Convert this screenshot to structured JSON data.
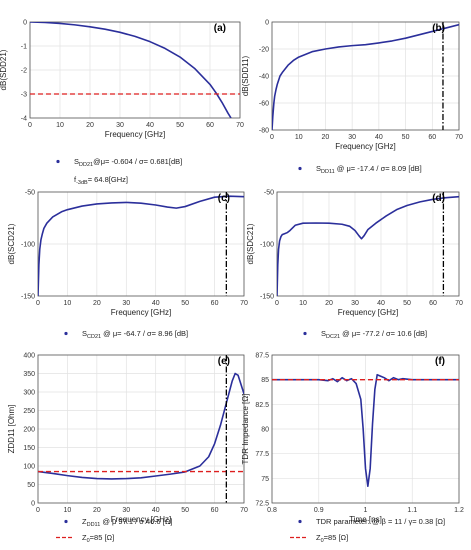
{
  "colors": {
    "curve": "#2b2f9b",
    "marker_red": "#dd1f1f",
    "marker_black": "#000000",
    "grid": "#e2e2e2"
  },
  "chart_data": [
    {
      "id": "a",
      "panel": "(a)",
      "type": "line",
      "xlabel": "Frequency [GHz]",
      "ylabel": "dB(SDD21)",
      "xlim": [
        0,
        70
      ],
      "ylim": [
        -4,
        0
      ],
      "xticks": [
        0,
        10,
        20,
        30,
        40,
        50,
        60,
        70
      ],
      "yticks": [
        0,
        -1,
        -2,
        -3,
        -4
      ],
      "series": [
        {
          "x": [
            0,
            5,
            10,
            15,
            20,
            25,
            30,
            35,
            40,
            45,
            50,
            55,
            60,
            62,
            64,
            66,
            67
          ],
          "y": [
            0,
            -0.02,
            -0.06,
            -0.12,
            -0.2,
            -0.3,
            -0.43,
            -0.6,
            -0.82,
            -1.1,
            -1.46,
            -1.95,
            -2.6,
            -2.95,
            -3.35,
            -3.8,
            -4.0
          ]
        }
      ],
      "hline": {
        "y": -3,
        "style": "red-dash"
      },
      "legend": [
        {
          "marker": "dot",
          "text": "S",
          "sub": "DD21",
          "rest": "@μ= -0.604 / σ= 0.681[dB]"
        },
        {
          "marker": "none",
          "text": "f",
          "sub": "-3dB",
          "rest": "= 64.8[GHz]"
        }
      ]
    },
    {
      "id": "b",
      "panel": "(b)",
      "type": "line",
      "xlabel": "Frequency [GHz]",
      "ylabel": "dB(SDD11)",
      "xlim": [
        0,
        70
      ],
      "ylim": [
        -80,
        0
      ],
      "xticks": [
        0,
        10,
        20,
        30,
        40,
        50,
        60,
        70
      ],
      "yticks": [
        0,
        -20,
        -40,
        -60,
        -80
      ],
      "series": [
        {
          "x": [
            0,
            0.3,
            0.7,
            1,
            1.5,
            2,
            3,
            4,
            6,
            8,
            10,
            15,
            20,
            25,
            30,
            35,
            40,
            45,
            50,
            55,
            60,
            65,
            70
          ],
          "y": [
            -80,
            -70,
            -60,
            -55,
            -50,
            -46,
            -40,
            -37,
            -32,
            -28.5,
            -26,
            -22,
            -20,
            -18.5,
            -17.5,
            -16.8,
            -15.5,
            -14,
            -12,
            -9.5,
            -7,
            -4.5,
            -2
          ]
        }
      ],
      "vline": {
        "x": 64,
        "style": "black-dashdot"
      },
      "legend": [
        {
          "marker": "dot",
          "text": "S",
          "sub": "DD11",
          "rest": " @ μ= -17.4 / σ= 8.09 [dB]"
        }
      ]
    },
    {
      "id": "c",
      "panel": "(c)",
      "type": "line",
      "xlabel": "Frequency [GHz]",
      "ylabel": "dB(SCD21)",
      "xlim": [
        0,
        70
      ],
      "ylim": [
        -150,
        -50
      ],
      "xticks": [
        0,
        10,
        20,
        30,
        40,
        50,
        60,
        70
      ],
      "yticks": [
        -50,
        -100,
        -150
      ],
      "series": [
        {
          "x": [
            0,
            0.3,
            0.6,
            1,
            1.5,
            2,
            3,
            5,
            8,
            10,
            15,
            20,
            25,
            30,
            35,
            40,
            44,
            47,
            50,
            55,
            60,
            65,
            70
          ],
          "y": [
            -150,
            -120,
            -105,
            -96,
            -90,
            -85,
            -80,
            -74,
            -69,
            -67,
            -63.5,
            -61.5,
            -60.5,
            -60,
            -60.8,
            -62.5,
            -64.5,
            -65.5,
            -64,
            -59,
            -55,
            -54,
            -54.5
          ]
        }
      ],
      "vline": {
        "x": 64,
        "style": "black-dashdot"
      },
      "legend": [
        {
          "marker": "dot",
          "text": "S",
          "sub": "CD21",
          "rest": " @ μ= -64.7 / σ= 8.96 [dB]"
        }
      ]
    },
    {
      "id": "d",
      "panel": "(d)",
      "type": "line",
      "xlabel": "Frequency [GHz]",
      "ylabel": "dB(SDC21)",
      "xlim": [
        0,
        70
      ],
      "ylim": [
        -150,
        -50
      ],
      "xticks": [
        0,
        10,
        20,
        30,
        40,
        50,
        60,
        70
      ],
      "yticks": [
        -50,
        -100,
        -150
      ],
      "series": [
        {
          "x": [
            0,
            0.3,
            0.6,
            1,
            1.5,
            2,
            3,
            4,
            5,
            7,
            10,
            15,
            20,
            25,
            28,
            30,
            31.5,
            32.5,
            33.5,
            35,
            38,
            42,
            46,
            50,
            55,
            60,
            65,
            70
          ],
          "y": [
            -150,
            -120,
            -105,
            -97,
            -93,
            -91,
            -90,
            -89,
            -87,
            -82,
            -80,
            -79.8,
            -80,
            -81,
            -83,
            -87,
            -92,
            -95,
            -92,
            -86,
            -80,
            -73,
            -67,
            -63,
            -59.5,
            -57,
            -55.5,
            -54.5
          ]
        }
      ],
      "vline": {
        "x": 64,
        "style": "black-dashdot"
      },
      "legend": [
        {
          "marker": "dot",
          "text": "S",
          "sub": "DC21",
          "rest": " @ μ= -77.2 / σ= 10.6 [dB]"
        }
      ]
    },
    {
      "id": "e",
      "panel": "(e)",
      "type": "line",
      "xlabel": "Frequency [GHz]",
      "ylabel": "ZDD11 [Ohm]",
      "xlim": [
        0,
        70
      ],
      "ylim": [
        0,
        400
      ],
      "xticks": [
        0,
        10,
        20,
        30,
        40,
        50,
        60,
        70
      ],
      "yticks": [
        0,
        50,
        100,
        150,
        200,
        250,
        300,
        350,
        400
      ],
      "series": [
        {
          "x": [
            0,
            5,
            10,
            15,
            20,
            25,
            30,
            35,
            40,
            45,
            50,
            55,
            58,
            60,
            62,
            64,
            66,
            67,
            68,
            69,
            70
          ],
          "y": [
            85,
            80,
            74,
            69,
            66,
            65,
            66,
            68,
            73,
            78,
            84,
            100,
            125,
            160,
            210,
            270,
            330,
            350,
            345,
            320,
            295
          ]
        }
      ],
      "hline": {
        "y": 85,
        "style": "red-dash"
      },
      "vline": {
        "x": 64,
        "style": "black-dashdot"
      },
      "legend": [
        {
          "marker": "dot",
          "text": "Z",
          "sub": "DD11",
          "rest": " @ μ  97.1 / σ  46.6 [Ω]"
        },
        {
          "marker": "red-dash",
          "text": "Z",
          "sub": "0",
          "rest": "=85 [Ω]"
        }
      ]
    },
    {
      "id": "f",
      "panel": "(f)",
      "type": "line",
      "xlabel": "Time [ns]",
      "ylabel": "TDR Impedance [Ω]",
      "xlim": [
        0.8,
        1.2
      ],
      "ylim": [
        72.5,
        87.5
      ],
      "xticks": [
        0.8,
        0.9,
        1.0,
        1.1,
        1.2
      ],
      "xticklabels": [
        "0.8",
        "0.9",
        "1",
        "1.1",
        "1.2"
      ],
      "yticks": [
        72.5,
        75,
        77.5,
        80,
        82.5,
        85,
        87.5
      ],
      "yticklabels": [
        "72.5",
        "75",
        "77.5",
        "80",
        "82.5",
        "85",
        "87.5"
      ],
      "series": [
        {
          "x": [
            0.8,
            0.85,
            0.9,
            0.92,
            0.93,
            0.94,
            0.95,
            0.96,
            0.97,
            0.98,
            0.99,
            0.995,
            1.0,
            1.005,
            1.01,
            1.015,
            1.02,
            1.025,
            1.03,
            1.04,
            1.05,
            1.06,
            1.07,
            1.08,
            1.1,
            1.15,
            1.2
          ],
          "y": [
            85,
            85,
            85,
            84.9,
            85.1,
            84.8,
            85.2,
            84.9,
            85.1,
            84.6,
            83,
            80,
            76,
            74.2,
            76,
            80.5,
            84,
            85.5,
            85.4,
            85.2,
            84.9,
            85.2,
            85,
            85.1,
            85,
            85,
            85
          ]
        }
      ],
      "hline": {
        "y": 85,
        "style": "red-dash"
      },
      "legend": [
        {
          "marker": "dot",
          "text": "TDR parameter: @ β = 11 / γ= 0.38 [Ω]",
          "sub": "",
          "rest": ""
        },
        {
          "marker": "red-dash",
          "text": "Z",
          "sub": "0",
          "rest": "=85 [Ω]"
        }
      ]
    }
  ]
}
